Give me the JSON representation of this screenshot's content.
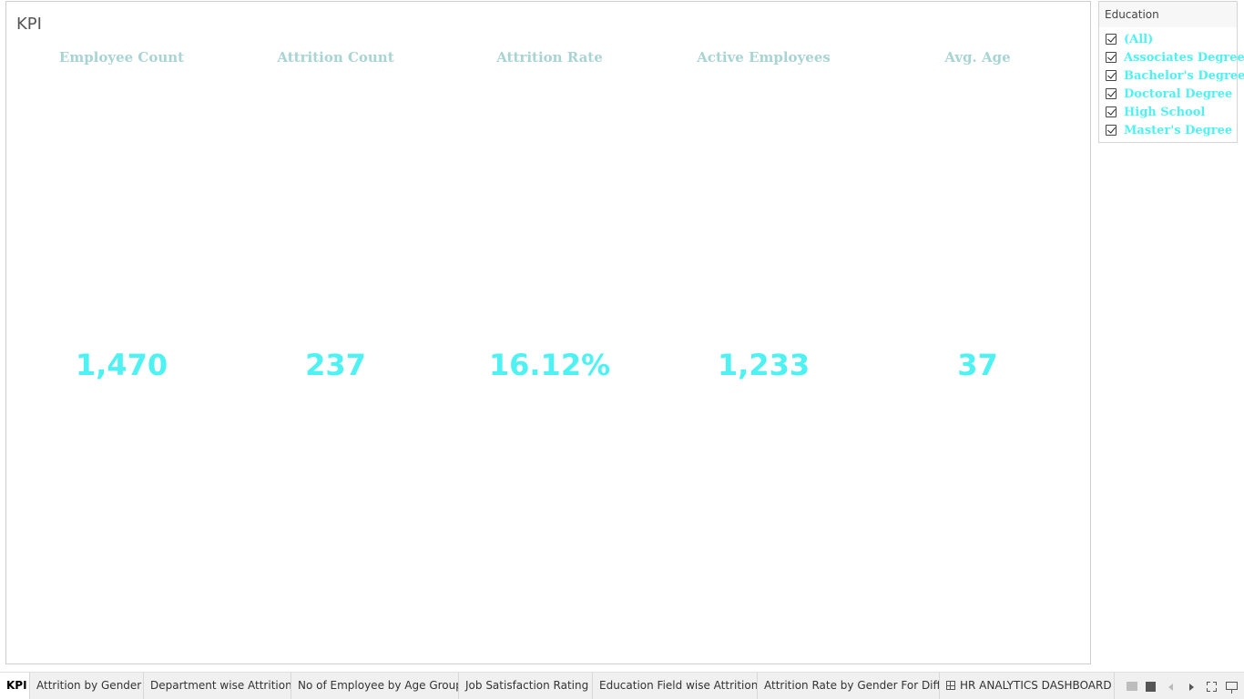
{
  "worksheet": {
    "title": "KPI"
  },
  "kpis": [
    {
      "label": "Employee Count",
      "value": "1,470"
    },
    {
      "label": "Attrition Count",
      "value": "237"
    },
    {
      "label": "Attrition Rate",
      "value": "16.12%"
    },
    {
      "label": "Active Employees",
      "value": "1,233"
    },
    {
      "label": "Avg. Age",
      "value": "37"
    }
  ],
  "filter": {
    "title": "Education",
    "items": [
      {
        "label": "(All)",
        "checked": true
      },
      {
        "label": "Associates Degree",
        "checked": true
      },
      {
        "label": "Bachelor's Degree",
        "checked": true
      },
      {
        "label": "Doctoral Degree",
        "checked": true
      },
      {
        "label": "High School",
        "checked": true
      },
      {
        "label": "Master's Degree",
        "checked": true
      }
    ]
  },
  "tabs": [
    {
      "label": "KPI",
      "active": true
    },
    {
      "label": "Attrition by Gender"
    },
    {
      "label": "Department wise Attrition"
    },
    {
      "label": "No of Employee by Age Group"
    },
    {
      "label": "Job Satisfaction Rating"
    },
    {
      "label": "Education Field wise Attrition"
    },
    {
      "label": "Attrition Rate by Gender For Diff..."
    },
    {
      "label": "HR ANALYTICS DASHBOARD",
      "icon": "dashboard-icon"
    }
  ],
  "colors": {
    "kpi_header": "#a9d4d4",
    "kpi_value": "#4ff2f2",
    "filter_item": "#4ff2f2"
  }
}
